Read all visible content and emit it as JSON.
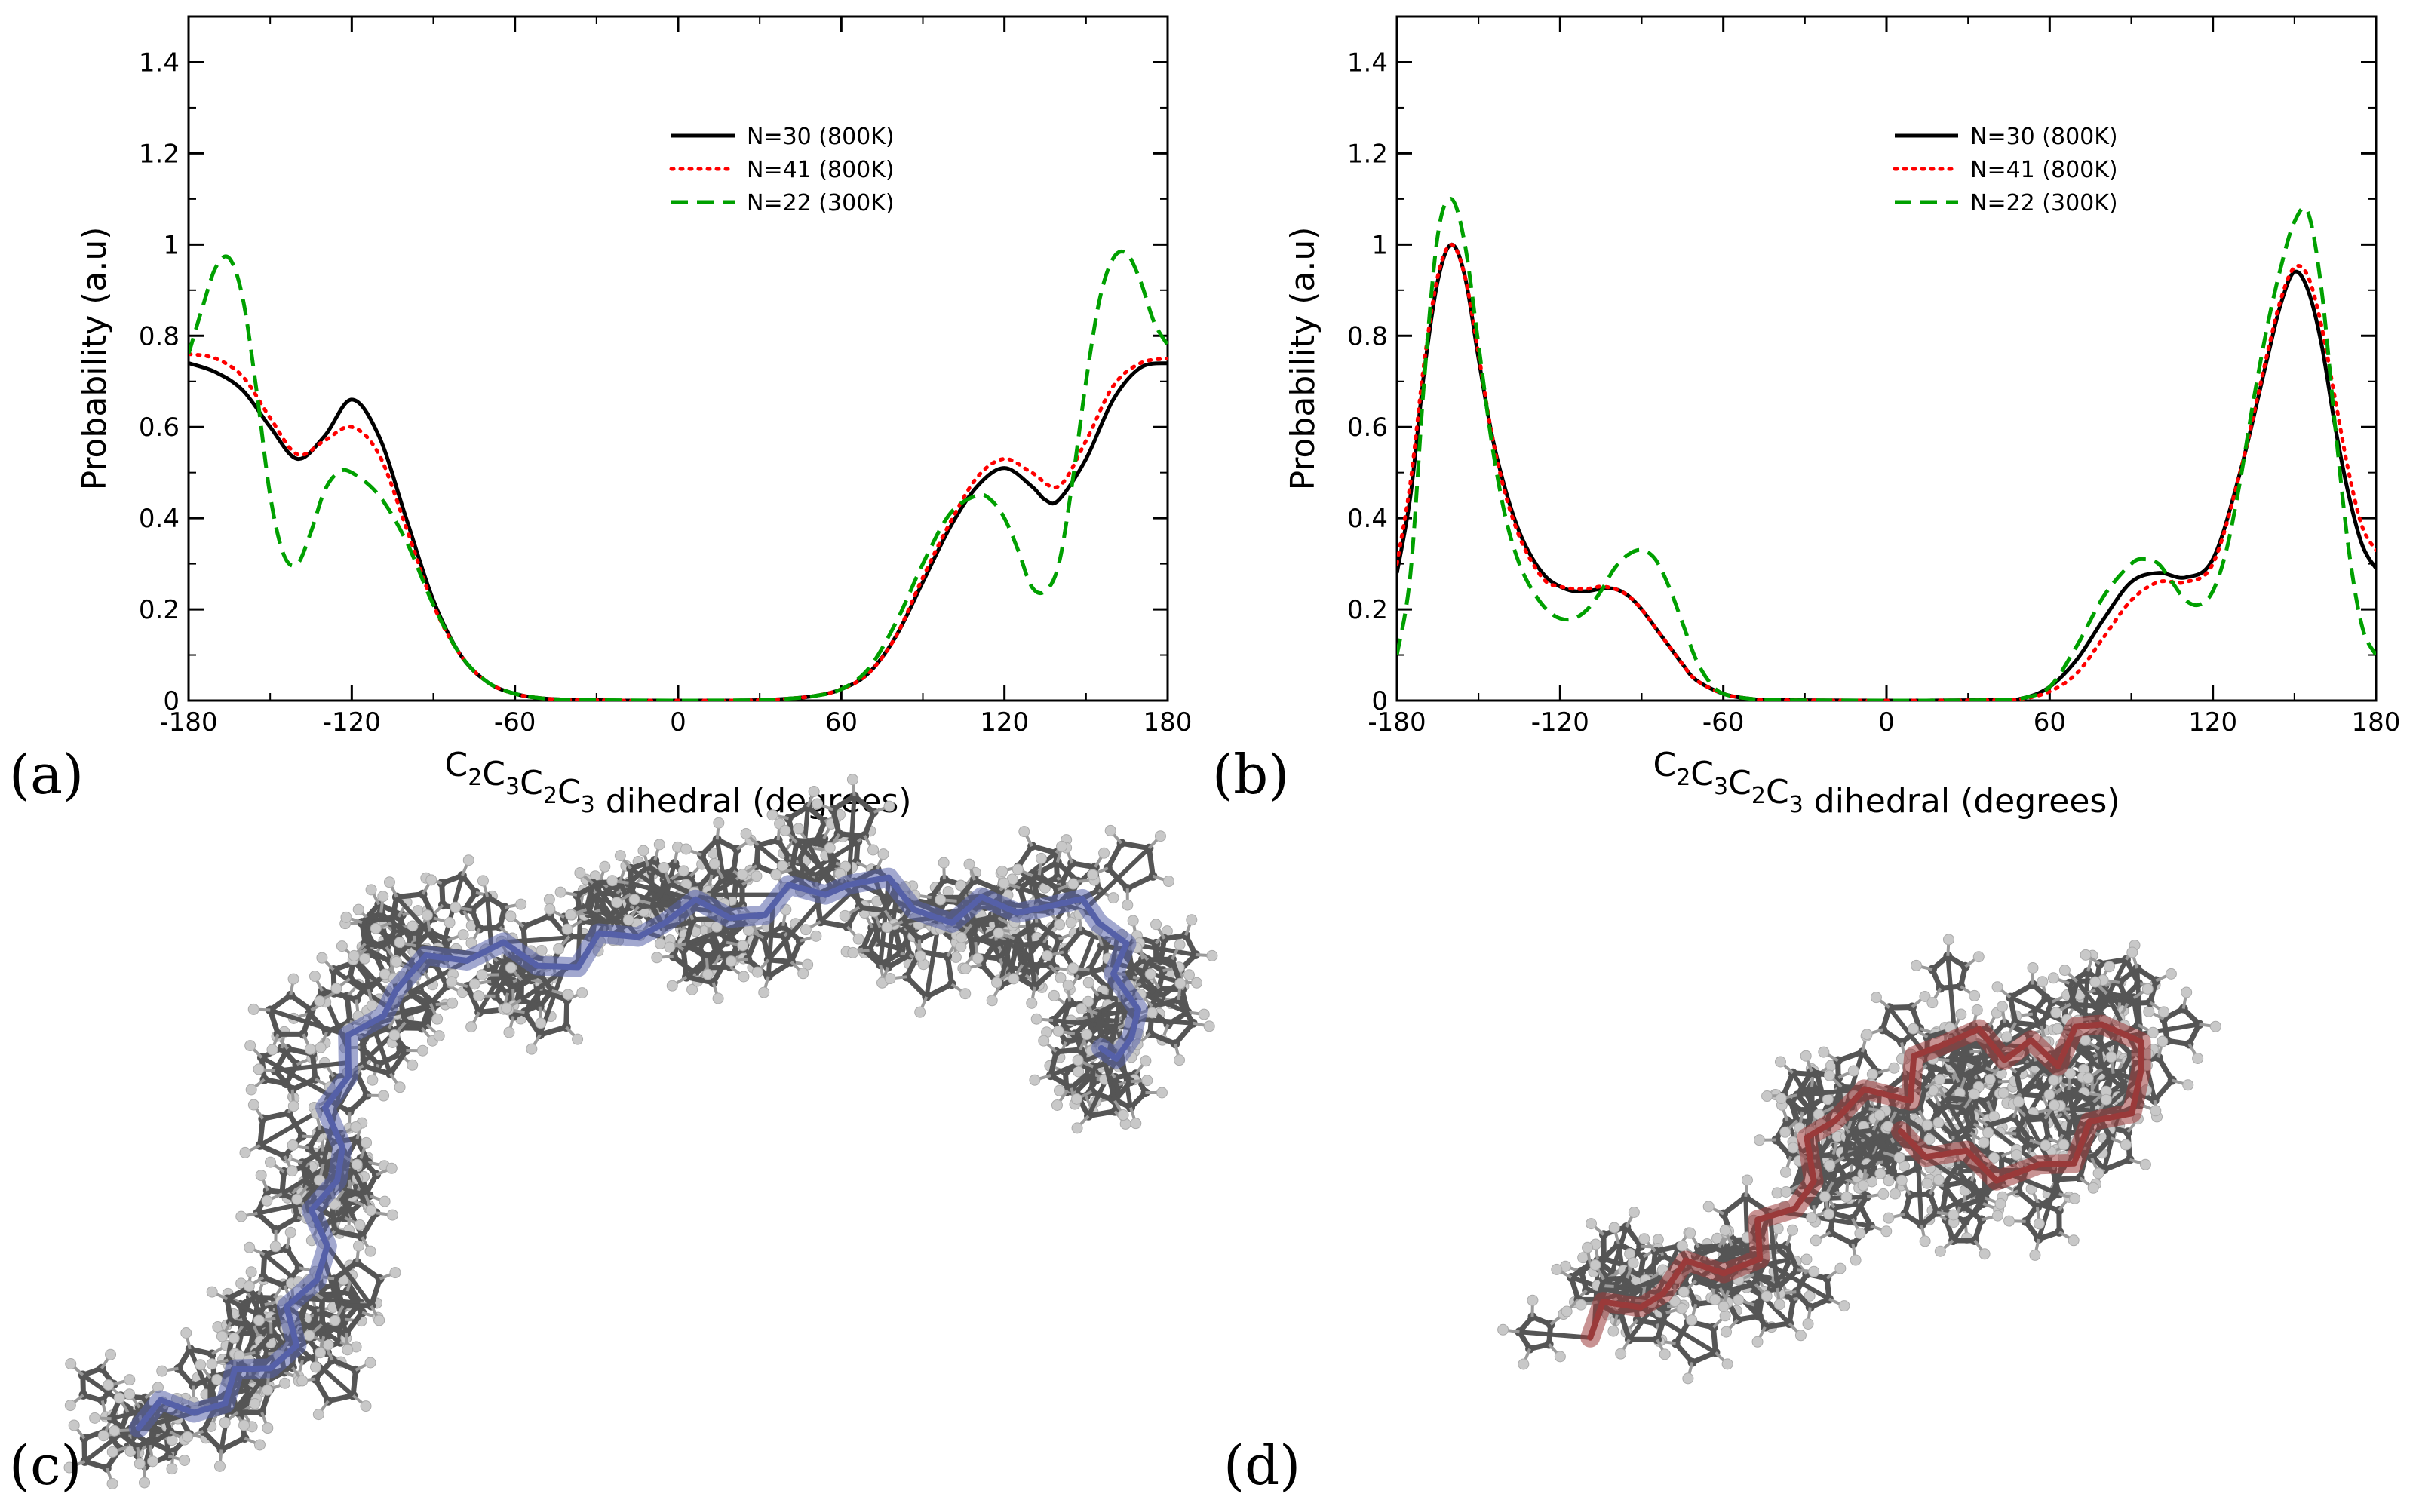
{
  "panel_labels": [
    "(a)",
    "(b)",
    "(c)",
    "(d)"
  ],
  "colors": {
    "n30": "#000000",
    "n41": "#ff0000",
    "n22": "#00a000",
    "chain_c": "#5560a8",
    "chain_d": "#9a3a3a",
    "atom": "#555555",
    "hydrogen": "#c8c8c8"
  },
  "chart_data": [
    {
      "type": "line",
      "panel": "(a)",
      "title": "",
      "xlabel": {
        "base": "C",
        "parts": [
          [
            "C",
            "2"
          ],
          [
            "C",
            "3"
          ],
          [
            "C",
            "2"
          ],
          [
            "C",
            "3"
          ]
        ],
        "suffix": " dihedral (degrees)"
      },
      "ylabel": "Probability (a.u)",
      "xlim": [
        -180,
        180
      ],
      "ylim": [
        0,
        1.5
      ],
      "xticks": [
        -180,
        -120,
        -60,
        0,
        60,
        120,
        180
      ],
      "xtick_labels": [
        "-180",
        "-120",
        "-60",
        "0",
        "60",
        "120",
        "180"
      ],
      "yticks": [
        0,
        0.2,
        0.4,
        0.6,
        0.8,
        1,
        1.2,
        1.4
      ],
      "ytick_labels": [
        "0",
        "0.2",
        "0.4",
        "0.6",
        "0.8",
        "1",
        "1.2",
        "1.4"
      ],
      "legend_position": "upper-right",
      "series": [
        {
          "name": "N=30 (800K)",
          "style": "solid",
          "x": [
            -180,
            -170,
            -160,
            -150,
            -140,
            -130,
            -120,
            -110,
            -100,
            -90,
            -80,
            -70,
            -60,
            -50,
            -40,
            -30,
            -20,
            0,
            20,
            30,
            40,
            50,
            60,
            70,
            80,
            90,
            100,
            110,
            120,
            130,
            135,
            140,
            150,
            160,
            170,
            180
          ],
          "y": [
            0.74,
            0.72,
            0.68,
            0.6,
            0.53,
            0.58,
            0.66,
            0.58,
            0.4,
            0.22,
            0.1,
            0.04,
            0.015,
            0.005,
            0.002,
            0.001,
            0,
            0,
            0,
            0.001,
            0.004,
            0.01,
            0.025,
            0.06,
            0.14,
            0.26,
            0.38,
            0.47,
            0.51,
            0.47,
            0.44,
            0.44,
            0.53,
            0.66,
            0.73,
            0.74
          ]
        },
        {
          "name": "N=41 (800K)",
          "style": "dotted",
          "x": [
            -180,
            -170,
            -160,
            -150,
            -140,
            -130,
            -120,
            -110,
            -100,
            -90,
            -80,
            -70,
            -60,
            -50,
            -40,
            -30,
            -20,
            0,
            20,
            30,
            40,
            50,
            60,
            70,
            80,
            90,
            100,
            110,
            120,
            130,
            140,
            150,
            160,
            170,
            180
          ],
          "y": [
            0.76,
            0.75,
            0.71,
            0.62,
            0.54,
            0.57,
            0.6,
            0.54,
            0.38,
            0.21,
            0.1,
            0.04,
            0.015,
            0.005,
            0.002,
            0.001,
            0,
            0,
            0,
            0.001,
            0.004,
            0.01,
            0.025,
            0.06,
            0.14,
            0.27,
            0.39,
            0.49,
            0.53,
            0.5,
            0.47,
            0.57,
            0.69,
            0.74,
            0.75
          ]
        },
        {
          "name": "N=22 (300K)",
          "style": "dashed",
          "x": [
            -180,
            -175,
            -170,
            -165,
            -160,
            -155,
            -150,
            -145,
            -140,
            -135,
            -130,
            -125,
            -120,
            -110,
            -100,
            -90,
            -80,
            -70,
            -60,
            -50,
            -40,
            -30,
            0,
            30,
            40,
            50,
            60,
            70,
            80,
            90,
            100,
            110,
            115,
            120,
            125,
            130,
            135,
            140,
            145,
            150,
            155,
            160,
            165,
            170,
            175,
            180
          ],
          "y": [
            0.76,
            0.86,
            0.95,
            0.97,
            0.88,
            0.68,
            0.45,
            0.32,
            0.3,
            0.37,
            0.46,
            0.5,
            0.5,
            0.45,
            0.35,
            0.21,
            0.1,
            0.04,
            0.015,
            0.005,
            0.002,
            0.001,
            0,
            0.001,
            0.004,
            0.01,
            0.025,
            0.07,
            0.17,
            0.3,
            0.41,
            0.45,
            0.44,
            0.4,
            0.33,
            0.25,
            0.24,
            0.3,
            0.48,
            0.7,
            0.88,
            0.97,
            0.98,
            0.92,
            0.83,
            0.78
          ]
        }
      ]
    },
    {
      "type": "line",
      "panel": "(b)",
      "title": "",
      "xlabel": {
        "base": "C",
        "parts": [
          [
            "C",
            "2"
          ],
          [
            "C",
            "3"
          ],
          [
            "C",
            "2"
          ],
          [
            "C",
            "3"
          ]
        ],
        "suffix": " dihedral (degrees)"
      },
      "ylabel": "Probability (a.u)",
      "xlim": [
        -180,
        180
      ],
      "ylim": [
        0,
        1.5
      ],
      "xticks": [
        -180,
        -120,
        -60,
        0,
        60,
        120,
        180
      ],
      "xtick_labels": [
        "-180",
        "-120",
        "-60",
        "0",
        "60",
        "120",
        "180"
      ],
      "yticks": [
        0,
        0.2,
        0.4,
        0.6,
        0.8,
        1,
        1.2,
        1.4
      ],
      "ytick_labels": [
        "0",
        "0.2",
        "0.4",
        "0.6",
        "0.8",
        "1",
        "1.2",
        "1.4"
      ],
      "legend_position": "upper-right",
      "series": [
        {
          "name": "N=30 (800K)",
          "style": "solid",
          "x": [
            -180,
            -175,
            -170,
            -165,
            -160,
            -155,
            -150,
            -145,
            -140,
            -135,
            -130,
            -125,
            -120,
            -115,
            -110,
            -105,
            -100,
            -95,
            -90,
            -85,
            -80,
            -75,
            -70,
            -60,
            -50,
            -40,
            0,
            40,
            50,
            60,
            70,
            80,
            90,
            100,
            110,
            120,
            130,
            140,
            145,
            150,
            155,
            160,
            165,
            170,
            175,
            180
          ],
          "y": [
            0.28,
            0.45,
            0.72,
            0.92,
            1.0,
            0.93,
            0.75,
            0.58,
            0.46,
            0.37,
            0.31,
            0.27,
            0.25,
            0.24,
            0.24,
            0.245,
            0.245,
            0.23,
            0.2,
            0.16,
            0.12,
            0.08,
            0.045,
            0.015,
            0.004,
            0.001,
            0,
            0.001,
            0.005,
            0.03,
            0.09,
            0.18,
            0.26,
            0.28,
            0.27,
            0.31,
            0.5,
            0.75,
            0.87,
            0.94,
            0.9,
            0.78,
            0.6,
            0.45,
            0.34,
            0.29
          ]
        },
        {
          "name": "N=41 (800K)",
          "style": "dotted",
          "x": [
            -180,
            -175,
            -170,
            -165,
            -160,
            -155,
            -150,
            -145,
            -140,
            -135,
            -130,
            -125,
            -120,
            -115,
            -110,
            -105,
            -100,
            -95,
            -90,
            -85,
            -80,
            -75,
            -70,
            -60,
            -50,
            -40,
            0,
            40,
            50,
            60,
            70,
            80,
            90,
            100,
            110,
            120,
            130,
            140,
            145,
            150,
            155,
            160,
            165,
            170,
            175,
            180
          ],
          "y": [
            0.3,
            0.48,
            0.74,
            0.93,
            1.0,
            0.93,
            0.76,
            0.58,
            0.45,
            0.36,
            0.3,
            0.26,
            0.25,
            0.245,
            0.245,
            0.25,
            0.245,
            0.23,
            0.2,
            0.16,
            0.12,
            0.08,
            0.045,
            0.015,
            0.004,
            0.001,
            0,
            0.001,
            0.004,
            0.02,
            0.06,
            0.14,
            0.22,
            0.26,
            0.26,
            0.3,
            0.5,
            0.76,
            0.88,
            0.95,
            0.93,
            0.82,
            0.66,
            0.5,
            0.38,
            0.33
          ]
        },
        {
          "name": "N=22 (300K)",
          "style": "dashed",
          "x": [
            -180,
            -175,
            -170,
            -165,
            -160,
            -155,
            -150,
            -145,
            -140,
            -135,
            -130,
            -125,
            -120,
            -115,
            -110,
            -105,
            -100,
            -95,
            -90,
            -85,
            -80,
            -75,
            -70,
            -65,
            -60,
            -50,
            -40,
            0,
            40,
            50,
            60,
            70,
            80,
            90,
            95,
            100,
            105,
            110,
            115,
            120,
            125,
            130,
            135,
            140,
            145,
            150,
            155,
            160,
            165,
            170,
            175,
            180
          ],
          "y": [
            0.1,
            0.28,
            0.7,
            1.02,
            1.1,
            1.0,
            0.78,
            0.56,
            0.4,
            0.3,
            0.24,
            0.2,
            0.18,
            0.18,
            0.2,
            0.24,
            0.29,
            0.32,
            0.33,
            0.31,
            0.25,
            0.17,
            0.09,
            0.04,
            0.015,
            0.004,
            0.001,
            0,
            0.001,
            0.005,
            0.03,
            0.12,
            0.23,
            0.3,
            0.31,
            0.3,
            0.26,
            0.22,
            0.21,
            0.24,
            0.33,
            0.48,
            0.66,
            0.82,
            0.95,
            1.05,
            1.07,
            0.9,
            0.6,
            0.33,
            0.16,
            0.1
          ]
        }
      ]
    }
  ],
  "molecules": [
    {
      "panel": "(c)"
    },
    {
      "panel": "(d)"
    }
  ]
}
